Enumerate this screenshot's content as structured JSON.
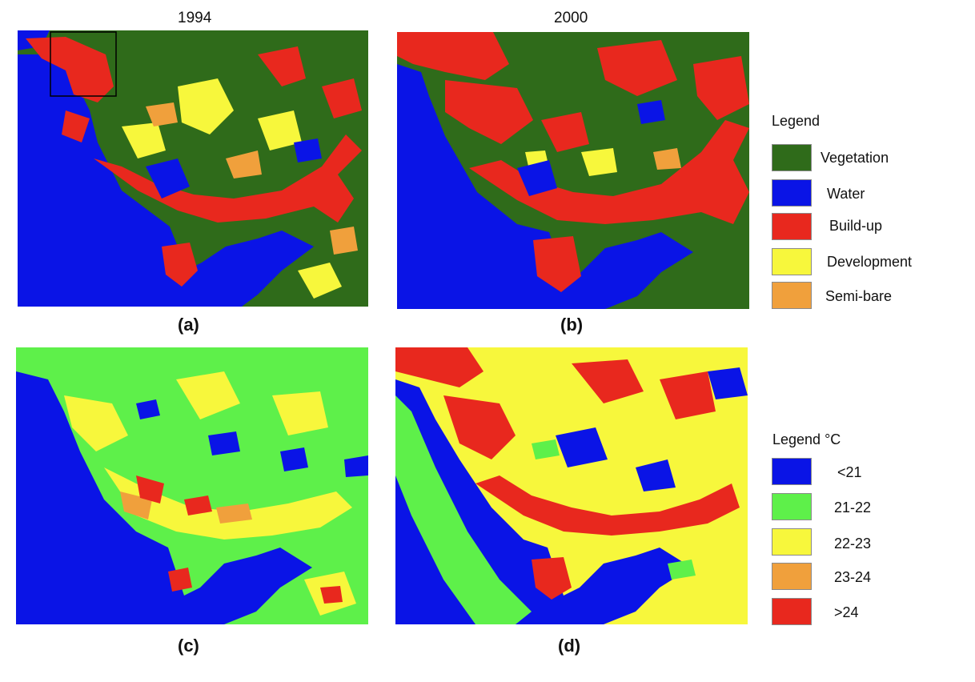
{
  "years": [
    "1994",
    "2000"
  ],
  "panels": [
    {
      "id": "a",
      "label": "(a)",
      "type": "land-use",
      "year": "1994"
    },
    {
      "id": "b",
      "label": "(b)",
      "type": "land-use",
      "year": "2000"
    },
    {
      "id": "c",
      "label": "(c)",
      "type": "temperature"
    },
    {
      "id": "d",
      "label": "(d)",
      "type": "temperature"
    }
  ],
  "legend_landuse": {
    "title": "Legend",
    "items": [
      {
        "label": "Vegetation",
        "color": "#2f6b1a"
      },
      {
        "label": "Water",
        "color": "#0a14e6"
      },
      {
        "label": "Build-up",
        "color": "#e8281e"
      },
      {
        "label": "Development",
        "color": "#f7f73c"
      },
      {
        "label": "Semi-bare",
        "color": "#f0a03c"
      }
    ]
  },
  "legend_temperature": {
    "title": "Legend °C",
    "items": [
      {
        "label": "<21",
        "color": "#0a14e6"
      },
      {
        "label": "21-22",
        "color": "#5ef04a"
      },
      {
        "label": "22-23",
        "color": "#f7f73c"
      },
      {
        "label": "23-24",
        "color": "#f0a03c"
      },
      {
        "label": ">24",
        "color": "#e8281e"
      }
    ]
  }
}
